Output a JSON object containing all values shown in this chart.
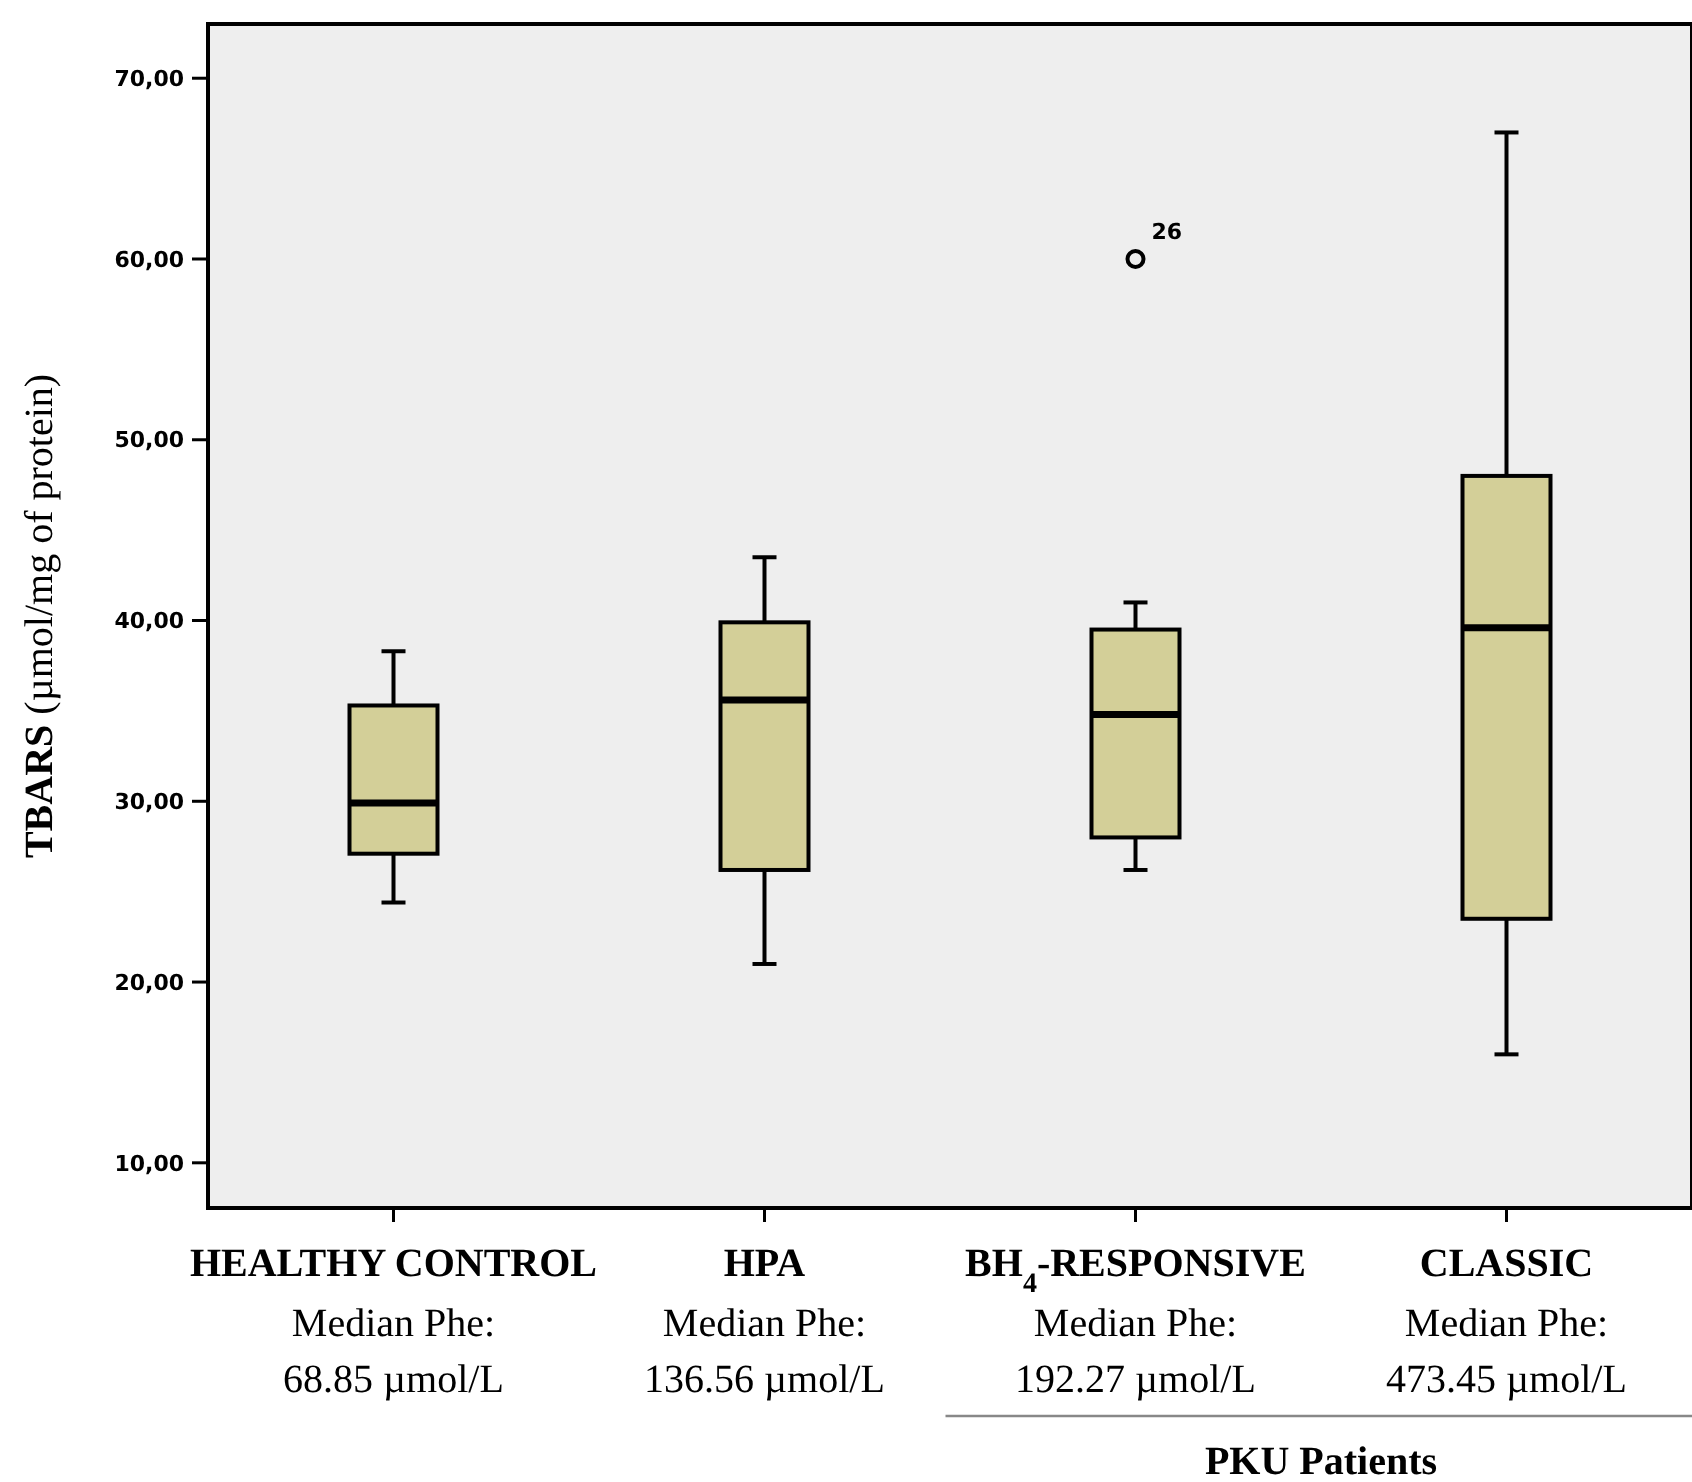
{
  "chart_data": {
    "type": "box",
    "ylabel": "TBARS (µmol/mg of protein)",
    "categories": [
      "HEALTHY CONTROL",
      "HPA",
      "BH$_{4}$-RESPONSIVE",
      "CLASSIC"
    ],
    "boxes": [
      {
        "low": 24.4,
        "q1": 27.1,
        "median": 29.9,
        "q3": 35.3,
        "high": 38.3
      },
      {
        "low": 21,
        "q1": 26.2,
        "median": 35.6,
        "q3": 39.9,
        "high": 43.5
      },
      {
        "low": 26.2,
        "q1": 28,
        "median": 34.8,
        "q3": 39.5,
        "high": 41,
        "outliers": [
          60
        ]
      },
      {
        "low": 16,
        "q1": 23.5,
        "median": 39.6,
        "q3": 48,
        "high": 67
      }
    ],
    "color": "#d3cf98",
    "ylim": [
      7.5,
      73
    ],
    "yticks": [
      {
        "value": 10,
        "label": "10,00"
      },
      {
        "value": 20,
        "label": "20,00"
      },
      {
        "value": 30,
        "label": "30,00"
      },
      {
        "value": 40,
        "label": "40,00"
      },
      {
        "value": 50,
        "label": "50,00"
      },
      {
        "value": 60,
        "label": "60,00"
      },
      {
        "value": 70,
        "label": "70,00"
      }
    ],
    "grid": false,
    "annotations": [
      "Median Phe: 68.85 µmol/L",
      "Median Phe: 136.56 µmol/L",
      "Median Phe: 192.27 µmol/L",
      "Median Phe: 473.45 µmol/L",
      "PKU Patients",
      "26"
    ]
  }
}
